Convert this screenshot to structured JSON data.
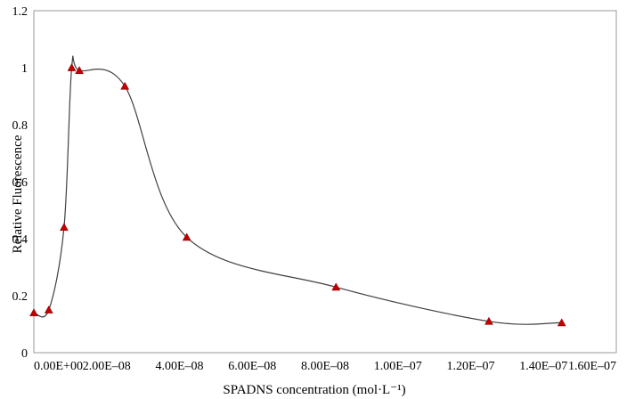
{
  "chart_data": {
    "type": "scatter",
    "title": "",
    "xlabel": "SPADNS concentration (mol·L⁻¹)",
    "ylabel": "Relative Fluorescence",
    "xlim": [
      0,
      1.6e-07
    ],
    "ylim": [
      0,
      1.2
    ],
    "xticks": [
      0,
      2e-08,
      4e-08,
      6e-08,
      8e-08,
      1e-07,
      1.2e-07,
      1.4e-07,
      1.6e-07
    ],
    "xtick_labels": [
      "0.00E+00",
      "2.00E–08",
      "4.00E–08",
      "6.00E–08",
      "8.00E–08",
      "1.00E–07",
      "1.20E–07",
      "1.40E–07",
      "1.60E–07"
    ],
    "yticks": [
      0,
      0.2,
      0.4,
      0.6,
      0.8,
      1,
      1.2
    ],
    "ytick_labels": [
      "0",
      "0.2",
      "0.4",
      "0.6",
      "0.8",
      "1",
      "1.2"
    ],
    "grid": false,
    "legend": "none",
    "marker": "triangle",
    "marker_color": "#c00000",
    "line_color": "#404040",
    "series": [
      {
        "x": [
          0,
          4.1e-09,
          8.3e-09,
          1.04e-08,
          1.25e-08,
          2.5e-08,
          4.2e-08,
          8.3e-08,
          1.25e-07,
          1.45e-07
        ],
        "y": [
          0.14,
          0.15,
          0.44,
          1.0,
          0.99,
          0.935,
          0.405,
          0.23,
          0.11,
          0.105
        ]
      }
    ]
  }
}
